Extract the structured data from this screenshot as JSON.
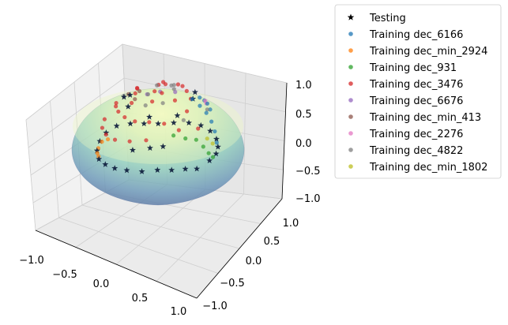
{
  "chart_data": {
    "type": "scatter",
    "projection": "3d",
    "surface": "hemisphere (lower half of unit sphere), colormap YlGnBu, alpha 0.5",
    "xlim": [
      -1.0,
      1.0
    ],
    "ylim": [
      -1.0,
      1.0
    ],
    "zlim": [
      -1.0,
      1.0
    ],
    "x_ticks": [
      "−1.0",
      "−0.5",
      "0.0",
      "0.5",
      "1.0"
    ],
    "y_ticks": [
      "−1.0",
      "−0.5",
      "0.0",
      "0.5",
      "1.0"
    ],
    "z_ticks": [
      "−1.0",
      "−0.5",
      "0.0",
      "0.5",
      "1.0"
    ],
    "grid": true,
    "legend_position": "outside right, top",
    "legend": [
      {
        "label": "Testing",
        "marker": "star",
        "color": "#000000"
      },
      {
        "label": "Training dec_6166",
        "marker": "circle",
        "color": "#1f77b4"
      },
      {
        "label": "Training dec_min_2924",
        "marker": "circle",
        "color": "#ff7f0e"
      },
      {
        "label": "Training dec_931",
        "marker": "circle",
        "color": "#2ca02c"
      },
      {
        "label": "Training dec_3476",
        "marker": "circle",
        "color": "#d62728"
      },
      {
        "label": "Training dec_6676",
        "marker": "circle",
        "color": "#9467bd"
      },
      {
        "label": "Training dec_min_413",
        "marker": "circle",
        "color": "#8c564b"
      },
      {
        "label": "Training dec_2276",
        "marker": "circle",
        "color": "#e377c2"
      },
      {
        "label": "Training dec_4822",
        "marker": "circle",
        "color": "#7f7f7f"
      },
      {
        "label": "Training dec_min_1802",
        "marker": "circle",
        "color": "#bcbd22"
      }
    ],
    "series": [
      {
        "name": "Testing",
        "points": [
          [
            0.99,
            -0.07,
            0.12
          ],
          [
            0.95,
            -0.3,
            0.05
          ],
          [
            0.85,
            -0.52,
            0.02
          ],
          [
            0.7,
            -0.7,
            0.0
          ],
          [
            0.5,
            -0.86,
            0.03
          ],
          [
            0.25,
            -0.96,
            0.05
          ],
          [
            0.0,
            -0.99,
            0.08
          ],
          [
            -0.25,
            -0.96,
            0.1
          ],
          [
            -0.5,
            -0.86,
            0.12
          ],
          [
            -0.72,
            -0.69,
            0.1
          ],
          [
            -0.88,
            -0.47,
            0.06
          ],
          [
            -0.97,
            -0.24,
            0.02
          ],
          [
            -0.99,
            0.02,
            0.0
          ],
          [
            -0.95,
            0.3,
            0.05
          ],
          [
            -0.85,
            0.52,
            0.1
          ],
          [
            -0.7,
            0.7,
            0.12
          ],
          [
            -0.5,
            0.86,
            0.1
          ],
          [
            -0.25,
            0.96,
            0.06
          ],
          [
            0.0,
            0.99,
            0.04
          ],
          [
            0.25,
            0.96,
            0.05
          ],
          [
            0.5,
            0.86,
            0.08
          ],
          [
            0.7,
            0.7,
            0.1
          ],
          [
            0.86,
            0.5,
            0.1
          ],
          [
            0.96,
            0.25,
            0.1
          ],
          [
            0.6,
            -0.2,
            -0.77
          ],
          [
            0.3,
            -0.55,
            -0.78
          ],
          [
            -0.2,
            -0.55,
            -0.81
          ],
          [
            -0.55,
            -0.3,
            -0.78
          ],
          [
            -0.8,
            0.1,
            -0.59
          ],
          [
            0.45,
            0.3,
            -0.84
          ],
          [
            0.2,
            0.6,
            -0.77
          ],
          [
            0.55,
            -0.75,
            -0.37
          ],
          [
            0.3,
            -0.9,
            -0.31
          ],
          [
            0.7,
            -0.6,
            -0.39
          ]
        ]
      },
      {
        "name": "Training dec_6166",
        "points": [
          [
            0.86,
            0.5,
            -0.1
          ],
          [
            0.82,
            0.48,
            -0.3
          ],
          [
            0.76,
            0.45,
            -0.47
          ],
          [
            0.68,
            0.4,
            -0.62
          ],
          [
            0.58,
            0.34,
            -0.74
          ],
          [
            0.46,
            0.27,
            -0.85
          ],
          [
            0.55,
            0.62,
            -0.56
          ],
          [
            0.4,
            0.7,
            -0.59
          ],
          [
            0.25,
            0.78,
            -0.57
          ],
          [
            0.1,
            0.82,
            -0.56
          ]
        ]
      },
      {
        "name": "Training dec_min_2924",
        "points": [
          [
            -0.9,
            -0.4,
            0.1
          ],
          [
            -0.8,
            -0.58,
            0.12
          ],
          [
            -0.68,
            -0.72,
            0.12
          ],
          [
            -0.55,
            -0.82,
            0.1
          ],
          [
            -0.96,
            -0.2,
            0.15
          ]
        ]
      },
      {
        "name": "Training dec_931",
        "points": [
          [
            -0.05,
            0.95,
            0.3
          ],
          [
            0.15,
            0.92,
            0.35
          ],
          [
            0.35,
            0.85,
            0.38
          ],
          [
            -0.25,
            0.9,
            0.32
          ],
          [
            -0.45,
            0.82,
            0.3
          ],
          [
            0.55,
            0.75,
            0.35
          ]
        ]
      },
      {
        "name": "Training dec_3476",
        "points": [
          [
            0.75,
            -0.3,
            -0.59
          ],
          [
            0.55,
            -0.45,
            -0.7
          ],
          [
            0.35,
            -0.6,
            -0.72
          ],
          [
            0.12,
            -0.7,
            -0.7
          ],
          [
            -0.12,
            -0.7,
            -0.7
          ],
          [
            -0.35,
            -0.62,
            -0.7
          ],
          [
            -0.55,
            -0.48,
            -0.68
          ],
          [
            -0.72,
            -0.3,
            -0.62
          ],
          [
            0.85,
            0.05,
            -0.52
          ],
          [
            0.62,
            0.0,
            -0.78
          ],
          [
            0.38,
            -0.05,
            -0.92
          ],
          [
            0.12,
            -0.1,
            -0.99
          ],
          [
            -0.1,
            0.2,
            -0.97
          ],
          [
            -0.3,
            0.35,
            -0.89
          ],
          [
            -0.5,
            0.45,
            -0.74
          ],
          [
            -0.65,
            0.52,
            -0.55
          ],
          [
            -0.75,
            0.58,
            -0.31
          ],
          [
            0.45,
            -0.75,
            -0.48
          ],
          [
            0.2,
            -0.88,
            -0.43
          ],
          [
            -0.1,
            -0.92,
            -0.38
          ],
          [
            -0.38,
            -0.85,
            -0.36
          ],
          [
            -0.62,
            -0.7,
            -0.35
          ],
          [
            -0.82,
            -0.45,
            -0.35
          ],
          [
            -0.15,
            0.55,
            -0.82
          ],
          [
            0.05,
            0.45,
            -0.89
          ],
          [
            0.25,
            0.35,
            -0.9
          ],
          [
            0.45,
            0.25,
            -0.86
          ],
          [
            -0.45,
            -0.1,
            -0.89
          ],
          [
            -0.6,
            0.05,
            -0.8
          ],
          [
            -0.78,
            0.2,
            -0.59
          ],
          [
            -0.9,
            0.25,
            -0.36
          ]
        ]
      },
      {
        "name": "Training dec_6676",
        "points": [
          [
            -0.6,
            0.6,
            -0.53
          ],
          [
            -0.4,
            0.75,
            -0.53
          ],
          [
            -0.75,
            0.45,
            -0.49
          ]
        ]
      },
      {
        "name": "Training dec_min_413",
        "points": [
          [
            -0.3,
            -0.2,
            -0.93
          ],
          [
            -0.5,
            -0.25,
            -0.83
          ],
          [
            -0.2,
            -0.4,
            -0.89
          ]
        ]
      },
      {
        "name": "Training dec_2276",
        "points": [
          [
            0.3,
            0.75,
            -0.59
          ],
          [
            0.45,
            0.62,
            -0.64
          ]
        ]
      },
      {
        "name": "Training dec_4822",
        "points": [
          [
            0.0,
            0.3,
            -0.95
          ],
          [
            0.15,
            0.15,
            -0.98
          ],
          [
            -0.15,
            0.05,
            -0.99
          ],
          [
            0.3,
            -0.25,
            -0.92
          ],
          [
            -0.35,
            0.6,
            -0.72
          ],
          [
            0.6,
            0.5,
            -0.62
          ],
          [
            0.7,
            -0.15,
            -0.7
          ],
          [
            -0.7,
            -0.15,
            -0.7
          ],
          [
            0.1,
            -0.45,
            -0.89
          ],
          [
            -0.05,
            -0.25,
            -0.97
          ]
        ]
      },
      {
        "name": "Training dec_min_1802",
        "points": [
          [
            0.2,
            0.95,
            0.2
          ],
          [
            0.4,
            0.88,
            0.2
          ]
        ]
      }
    ]
  }
}
